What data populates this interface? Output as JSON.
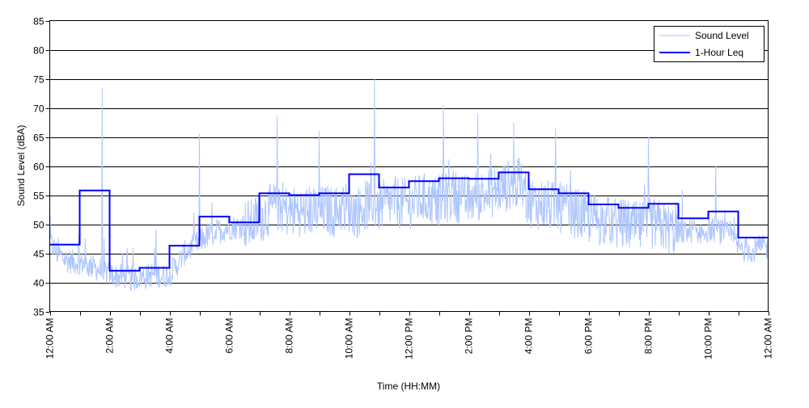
{
  "chart_data": {
    "type": "line",
    "title": "",
    "xlabel": "Time (HH:MM)",
    "ylabel": "Sound Level (dBA)",
    "ylim": [
      35,
      85
    ],
    "xlim_hours": [
      0,
      24
    ],
    "yticks": [
      35,
      40,
      45,
      50,
      55,
      60,
      65,
      70,
      75,
      80,
      85
    ],
    "xtick_labels": [
      "12:00 AM",
      "2:00 AM",
      "4:00 AM",
      "6:00 AM",
      "8:00 AM",
      "10:00 AM",
      "12:00 PM",
      "2:00 PM",
      "4:00 PM",
      "6:00 PM",
      "8:00 PM",
      "10:00 PM",
      "12:00 AM"
    ],
    "grid": "horizontal",
    "legend_placement": "top-right",
    "series": [
      {
        "name": "Sound Level",
        "color": "#aec6ff",
        "sample_interval_minutes": 15,
        "values": [
          47,
          45,
          44,
          43.5,
          43.5,
          43,
          42.5,
          42,
          41.5,
          41,
          41,
          40.5,
          41,
          41,
          41.5,
          41,
          41.5,
          43,
          45,
          46,
          47,
          48,
          48.5,
          49,
          49.5,
          49.5,
          50,
          50,
          51,
          52,
          53,
          53,
          52,
          52.5,
          52,
          52.5,
          52,
          52.5,
          52,
          53,
          53,
          52,
          53,
          54,
          53,
          53.5,
          54,
          53.5,
          53.5,
          54,
          54.5,
          54,
          54,
          54.5,
          55,
          54.5,
          54,
          55,
          55,
          55.5,
          56,
          56.5,
          57,
          56.5,
          54,
          53.5,
          53.5,
          53,
          53,
          52.5,
          52,
          51.5,
          51,
          51,
          50.5,
          50.5,
          50,
          50,
          49.5,
          49.5,
          50,
          50,
          49.5,
          49,
          49,
          48.5,
          49,
          48.5,
          49,
          49,
          48.5,
          48,
          46,
          45.5,
          45.5,
          46
        ],
        "peaks": [
          {
            "hour": 1.75,
            "value": 73.5
          },
          {
            "hour": 5.0,
            "value": 65.5
          },
          {
            "hour": 7.6,
            "value": 68.7
          },
          {
            "hour": 9.0,
            "value": 66
          },
          {
            "hour": 10.85,
            "value": 75
          },
          {
            "hour": 13.15,
            "value": 70.5
          },
          {
            "hour": 14.3,
            "value": 69
          },
          {
            "hour": 15.5,
            "value": 67.5
          },
          {
            "hour": 16.9,
            "value": 66.5
          },
          {
            "hour": 20.0,
            "value": 65
          },
          {
            "hour": 22.25,
            "value": 60
          }
        ]
      },
      {
        "name": "1-Hour Leq",
        "color": "#0000ff",
        "type": "step",
        "hours": [
          0,
          1,
          2,
          3,
          4,
          5,
          6,
          7,
          8,
          9,
          10,
          11,
          12,
          13,
          14,
          15,
          16,
          17,
          18,
          19,
          20,
          21,
          22,
          23
        ],
        "values": [
          46.5,
          55.8,
          42.0,
          42.5,
          46.3,
          51.3,
          50.3,
          55.3,
          55.0,
          55.3,
          58.6,
          56.3,
          57.4,
          57.9,
          57.8,
          58.9,
          56.0,
          55.3,
          53.4,
          52.8,
          53.5,
          51.0,
          52.2,
          47.7
        ]
      }
    ]
  }
}
